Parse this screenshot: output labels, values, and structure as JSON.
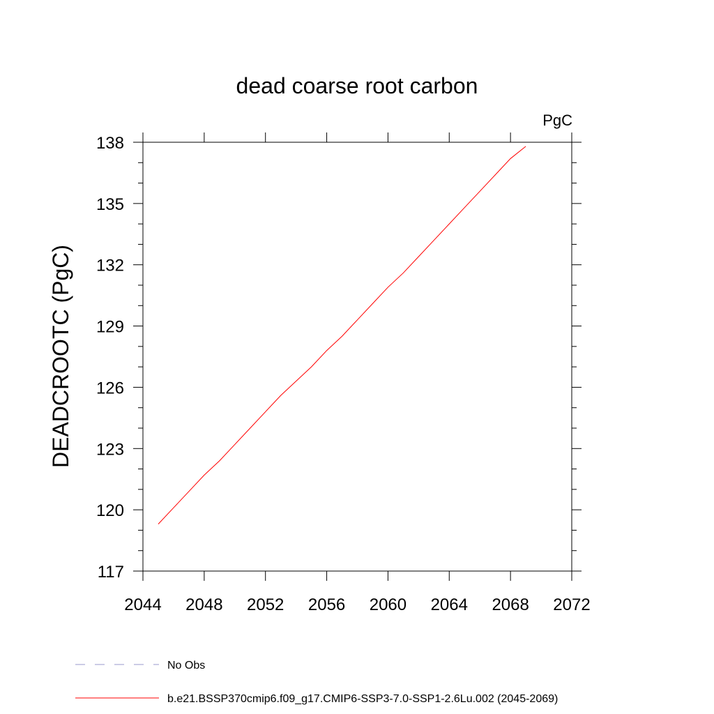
{
  "chart_data": {
    "type": "line",
    "title": "dead coarse root carbon",
    "units": "PgC",
    "xlabel": "",
    "ylabel": "DEADCROOTC  (PgC)",
    "xlim": [
      2044,
      2072
    ],
    "ylim": [
      117,
      138
    ],
    "xticks": [
      2044,
      2048,
      2052,
      2056,
      2060,
      2064,
      2068,
      2072
    ],
    "yticks": [
      117,
      120,
      123,
      126,
      129,
      132,
      135,
      138
    ],
    "grid": false,
    "legend_position": "bottom",
    "series": [
      {
        "name": "b.e21.BSSP370cmip6.f09_g17.CMIP6-SSP3-7.0-SSP1-2.6Lu.002 (2045-2069)",
        "color": "#ff0000",
        "line_style": "solid",
        "x": [
          2045,
          2046,
          2047,
          2048,
          2049,
          2050,
          2051,
          2052,
          2053,
          2054,
          2055,
          2056,
          2057,
          2058,
          2059,
          2060,
          2061,
          2062,
          2063,
          2064,
          2065,
          2066,
          2067,
          2068,
          2069
        ],
        "y": [
          119.3,
          120.1,
          120.9,
          121.7,
          122.4,
          123.2,
          124.0,
          124.8,
          125.6,
          126.3,
          127.0,
          127.8,
          128.5,
          129.3,
          130.1,
          130.9,
          131.6,
          132.4,
          133.2,
          134.0,
          134.8,
          135.6,
          136.4,
          137.2,
          137.8
        ],
        "legend_label": "b.e21.BSSP370cmip6.f09_g17.CMIP6-SSP3-7.0-SSP1-2.6Lu.002 (2045-2069)"
      }
    ],
    "legend": [
      {
        "label": "No Obs",
        "color": "#9999cc",
        "line_style": "dashed"
      },
      {
        "label": "b.e21.BSSP370cmip6.f09_g17.CMIP6-SSP3-7.0-SSP1-2.6Lu.002 (2045-2069)",
        "color": "#ff0000",
        "line_style": "solid"
      }
    ]
  }
}
